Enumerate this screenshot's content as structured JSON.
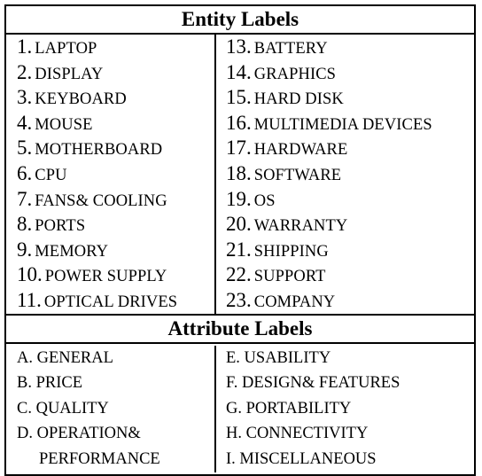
{
  "entity_header": "Entity Labels",
  "attribute_header": "Attribute Labels",
  "entities_left": [
    {
      "num": "1.",
      "label": "LAPTOP"
    },
    {
      "num": "2.",
      "label": "DISPLAY"
    },
    {
      "num": "3.",
      "label": "KEYBOARD"
    },
    {
      "num": "4.",
      "label": "MOUSE"
    },
    {
      "num": "5.",
      "label": "MOTHERBOARD"
    },
    {
      "num": "6.",
      "label": "CPU"
    },
    {
      "num": "7.",
      "label": "FANS& COOLING"
    },
    {
      "num": "8.",
      "label": "PORTS"
    },
    {
      "num": "9.",
      "label": "MEMORY"
    },
    {
      "num": "10.",
      "label": "POWER SUPPLY"
    },
    {
      "num": "11.",
      "label": "OPTICAL DRIVES"
    }
  ],
  "entities_right": [
    {
      "num": "13.",
      "label": "BATTERY"
    },
    {
      "num": "14.",
      "label": "GRAPHICS"
    },
    {
      "num": "15.",
      "label": "HARD DISK"
    },
    {
      "num": "16.",
      "label": "MULTIMEDIA DEVICES"
    },
    {
      "num": "17.",
      "label": "HARDWARE"
    },
    {
      "num": "18.",
      "label": "SOFTWARE"
    },
    {
      "num": "19.",
      "label": "OS"
    },
    {
      "num": "20.",
      "label": "WARRANTY"
    },
    {
      "num": "21.",
      "label": "SHIPPING"
    },
    {
      "num": "22.",
      "label": "SUPPORT"
    },
    {
      "num": "23.",
      "label": "COMPANY"
    }
  ],
  "attributes_left": [
    "A. GENERAL",
    "B. PRICE",
    "C. QUALITY",
    "D. OPERATION&",
    "PERFORMANCE"
  ],
  "attributes_right": [
    "E. USABILITY",
    "F. DESIGN& FEATURES",
    "G. PORTABILITY",
    "H. CONNECTIVITY",
    "I.  MISCELLANEOUS"
  ]
}
